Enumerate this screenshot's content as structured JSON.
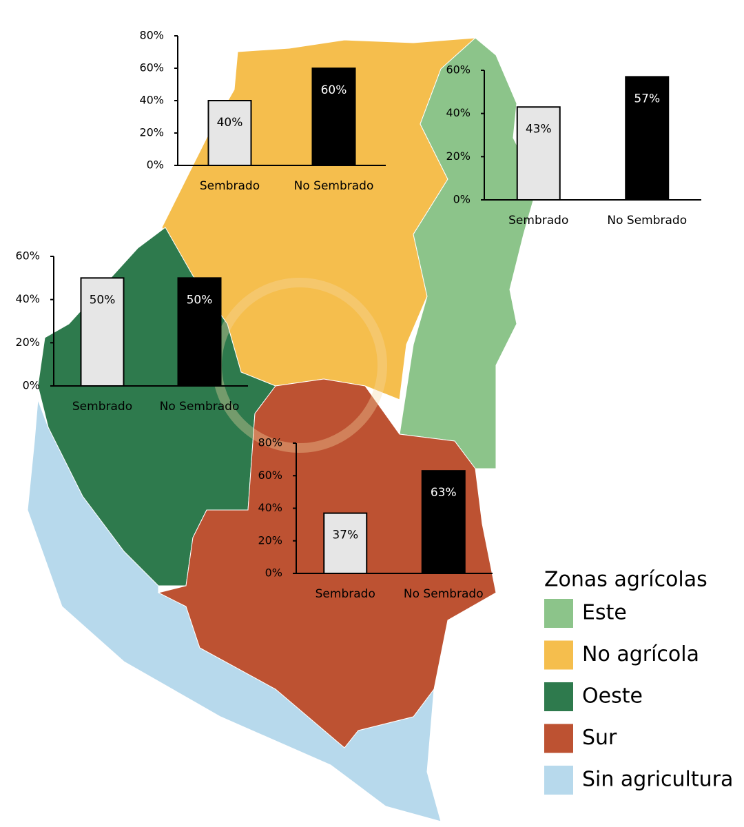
{
  "chart_data": [
    {
      "type": "bar",
      "categories": [
        "Sembrado",
        "No Sembrado"
      ],
      "values": [
        40,
        60
      ],
      "value_labels": [
        "40%",
        "60%"
      ],
      "colors": [
        "#e6e6e6",
        "#000000"
      ],
      "ylim": [
        0,
        80
      ],
      "yticks": [
        {
          "value": 0,
          "label": "0%"
        },
        {
          "value": 20,
          "label": "20%"
        },
        {
          "value": 40,
          "label": "40%"
        },
        {
          "value": 60,
          "label": "60%"
        },
        {
          "value": 80,
          "label": "80%"
        }
      ]
    },
    {
      "type": "bar",
      "categories": [
        "Sembrado",
        "No Sembrado"
      ],
      "values": [
        43,
        57
      ],
      "value_labels": [
        "43%",
        "57%"
      ],
      "colors": [
        "#e6e6e6",
        "#000000"
      ],
      "ylim": [
        0,
        60
      ],
      "yticks": [
        {
          "value": 0,
          "label": "0%"
        },
        {
          "value": 20,
          "label": "20%"
        },
        {
          "value": 40,
          "label": "40%"
        },
        {
          "value": 60,
          "label": "60%"
        }
      ]
    },
    {
      "type": "bar",
      "categories": [
        "Sembrado",
        "No Sembrado"
      ],
      "values": [
        50,
        50
      ],
      "value_labels": [
        "50%",
        "50%"
      ],
      "colors": [
        "#e6e6e6",
        "#000000"
      ],
      "ylim": [
        0,
        60
      ],
      "yticks": [
        {
          "value": 0,
          "label": "0%"
        },
        {
          "value": 20,
          "label": "20%"
        },
        {
          "value": 40,
          "label": "40%"
        },
        {
          "value": 60,
          "label": "60%"
        }
      ]
    },
    {
      "type": "bar",
      "categories": [
        "Sembrado",
        "No Sembrado"
      ],
      "values": [
        37,
        63
      ],
      "value_labels": [
        "37%",
        "63%"
      ],
      "colors": [
        "#e6e6e6",
        "#000000"
      ],
      "ylim": [
        0,
        80
      ],
      "yticks": [
        {
          "value": 0,
          "label": "0%"
        },
        {
          "value": 20,
          "label": "20%"
        },
        {
          "value": 40,
          "label": "40%"
        },
        {
          "value": 60,
          "label": "60%"
        },
        {
          "value": 80,
          "label": "80%"
        }
      ]
    }
  ],
  "legend": {
    "title": "Zonas agrícolas",
    "items": [
      {
        "name": "Este",
        "color": "#8cc48a"
      },
      {
        "name": "No agrícola",
        "color": "#f5be4d"
      },
      {
        "name": "Oeste",
        "color": "#2e7a4d"
      },
      {
        "name": "Sur",
        "color": "#bd5232"
      },
      {
        "name": "Sin agricultura",
        "color": "#b7d9ec"
      }
    ]
  }
}
